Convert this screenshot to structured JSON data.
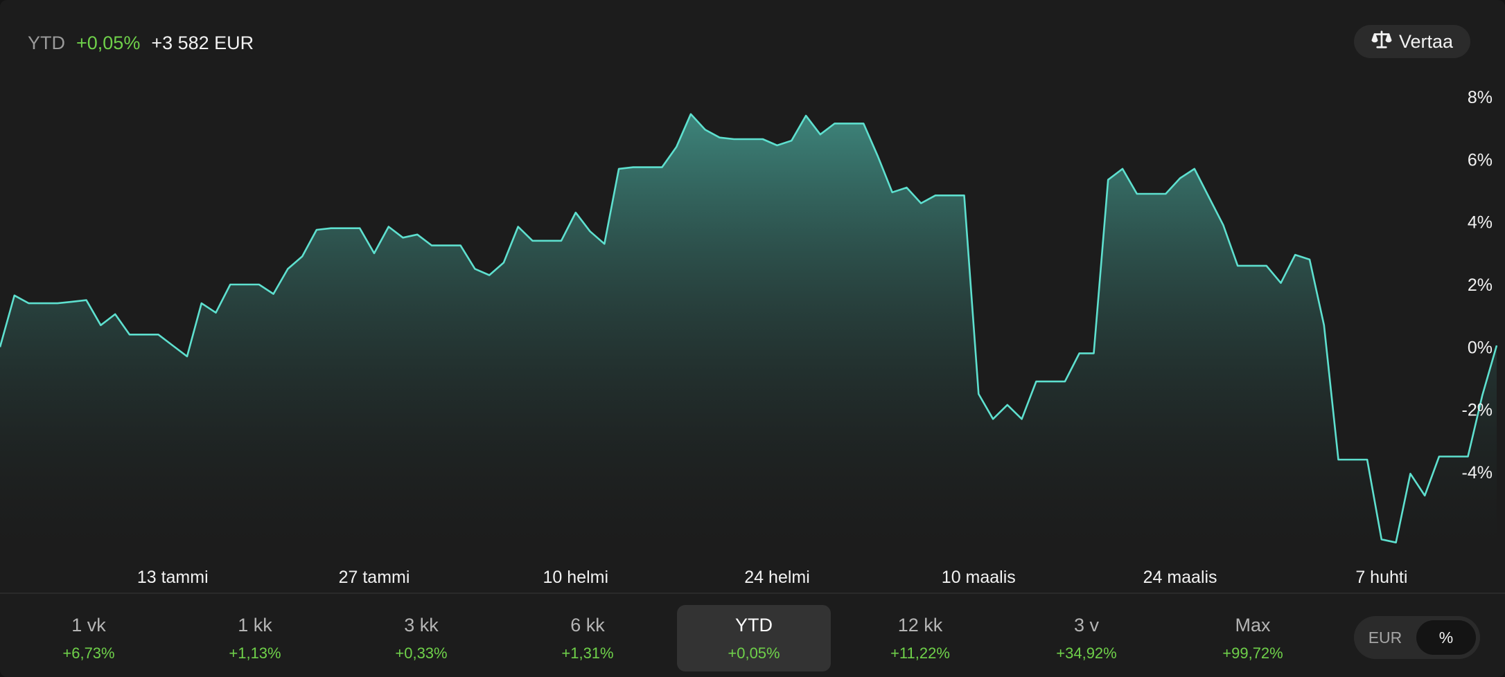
{
  "header": {
    "period_label": "YTD",
    "percent_change": "+0,05%",
    "absolute_change": "+3 582 EUR",
    "compare_label": "Vertaa",
    "compare_icon": "scale-balance-icon"
  },
  "chart_data": {
    "type": "area",
    "ylim": [
      -6.5,
      8
    ],
    "y_ticks": [
      "8%",
      "6%",
      "4%",
      "2%",
      "0%",
      "-2%",
      "-4%"
    ],
    "y_tick_values": [
      8,
      6,
      4,
      2,
      0,
      -2,
      -4
    ],
    "x_ticks": [
      "13 tammi",
      "27 tammi",
      "10 helmi",
      "24 helmi",
      "10 maalis",
      "24 maalis",
      "7 huhti"
    ],
    "x_tick_positions": [
      12,
      26,
      40,
      54,
      68,
      82,
      96
    ],
    "x_range": [
      0,
      104
    ],
    "values": [
      0.0,
      1.65,
      1.4,
      1.4,
      1.4,
      1.45,
      1.5,
      0.7,
      1.05,
      0.4,
      0.4,
      0.4,
      0.05,
      -0.3,
      1.4,
      1.1,
      2.0,
      2.0,
      2.0,
      1.7,
      2.5,
      2.9,
      3.75,
      3.8,
      3.8,
      3.8,
      3.0,
      3.85,
      3.5,
      3.6,
      3.25,
      3.25,
      3.25,
      2.5,
      2.3,
      2.7,
      3.85,
      3.4,
      3.4,
      3.4,
      4.3,
      3.7,
      3.3,
      5.7,
      5.75,
      5.75,
      5.75,
      6.4,
      7.45,
      6.95,
      6.7,
      6.65,
      6.65,
      6.65,
      6.45,
      6.6,
      7.4,
      6.8,
      7.15,
      7.15,
      7.15,
      6.1,
      4.95,
      5.1,
      4.6,
      4.85,
      4.85,
      4.85,
      -1.5,
      -2.3,
      -1.85,
      -2.3,
      -1.1,
      -1.1,
      -1.1,
      -0.2,
      -0.2,
      5.35,
      5.7,
      4.9,
      4.9,
      4.9,
      5.4,
      5.7,
      4.8,
      3.9,
      2.6,
      2.6,
      2.6,
      2.05,
      2.95,
      2.8,
      0.7,
      -3.6,
      -3.6,
      -3.6,
      -6.15,
      -6.25,
      -4.05,
      -4.75,
      -3.5,
      -3.5,
      -3.5,
      -1.55,
      0.05
    ],
    "line_color": "#5ee0cf",
    "fill_color_top": "#3a7a72",
    "grid": false
  },
  "periods": [
    {
      "label": "1 vk",
      "change": "+6,73%"
    },
    {
      "label": "1 kk",
      "change": "+1,13%"
    },
    {
      "label": "3 kk",
      "change": "+0,33%"
    },
    {
      "label": "6 kk",
      "change": "+1,31%"
    },
    {
      "label": "YTD",
      "change": "+0,05%",
      "active": true
    },
    {
      "label": "12 kk",
      "change": "+11,22%"
    },
    {
      "label": "3 v",
      "change": "+34,92%"
    },
    {
      "label": "Max",
      "change": "+99,72%"
    }
  ],
  "currency_toggle": {
    "options": [
      "EUR",
      "%"
    ],
    "selected": "%"
  },
  "colors": {
    "positive": "#6fd14a",
    "background": "#1c1c1c",
    "accent": "#5ee0cf"
  }
}
